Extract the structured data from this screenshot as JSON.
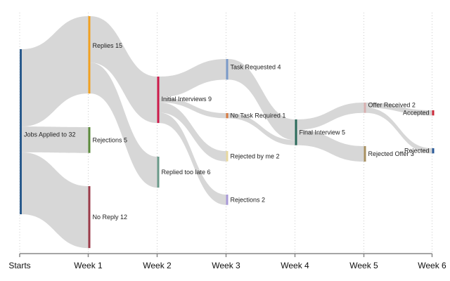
{
  "chart_data": {
    "type": "sankey",
    "title": "",
    "axis": {
      "ticks": [
        "Starts",
        "Week 1",
        "Week 2",
        "Week 3",
        "Week 4",
        "Week 5",
        "Week 6"
      ]
    },
    "unit_scale_max": 32,
    "nodes": [
      {
        "id": "start",
        "label": "Jobs Applied to 32",
        "value": 32,
        "week": 0,
        "color": "#2a5a8c"
      },
      {
        "id": "replies",
        "label": "Replies 15",
        "value": 15,
        "week": 1,
        "color": "#f0a020"
      },
      {
        "id": "rej1",
        "label": "Rejections 5",
        "value": 5,
        "week": 1,
        "color": "#5a8a3a"
      },
      {
        "id": "noreply",
        "label": "No Reply 12",
        "value": 12,
        "week": 1,
        "color": "#9a3a48"
      },
      {
        "id": "init",
        "label": "Initial Interviews 9",
        "value": 9,
        "week": 2,
        "color": "#cc1a4a"
      },
      {
        "id": "late",
        "label": "Replied too late 6",
        "value": 6,
        "week": 2,
        "color": "#6a9a8a"
      },
      {
        "id": "task",
        "label": "Task Requested 4",
        "value": 4,
        "week": 3,
        "color": "#7a9ac8"
      },
      {
        "id": "notask",
        "label": "No Task Required 1",
        "value": 1,
        "week": 3,
        "color": "#d87a40"
      },
      {
        "id": "rejme",
        "label": "Rejected by me 2",
        "value": 2,
        "week": 3,
        "color": "#e8d8a0"
      },
      {
        "id": "rej3",
        "label": "Rejections 2",
        "value": 2,
        "week": 3,
        "color": "#a89ad8"
      },
      {
        "id": "final",
        "label": "Final Interview 5",
        "value": 5,
        "week": 4,
        "color": "#2a6a5a"
      },
      {
        "id": "offer",
        "label": "Offer Received 2",
        "value": 2,
        "week": 5,
        "color": "#d8b0b0"
      },
      {
        "id": "rejoffer",
        "label": "Rejected Offer 3",
        "value": 3,
        "week": 5,
        "color": "#a89060"
      },
      {
        "id": "accepted",
        "label": "Accepted",
        "value": 1,
        "week": 6,
        "color": "#cc2a3a"
      },
      {
        "id": "rejected6",
        "label": "Rejected",
        "value": 1,
        "week": 6,
        "color": "#2a5a9a"
      }
    ],
    "links": [
      {
        "source": "start",
        "target": "replies",
        "value": 15
      },
      {
        "source": "start",
        "target": "rej1",
        "value": 5
      },
      {
        "source": "start",
        "target": "noreply",
        "value": 12
      },
      {
        "source": "replies",
        "target": "init",
        "value": 9
      },
      {
        "source": "replies",
        "target": "late",
        "value": 6
      },
      {
        "source": "init",
        "target": "task",
        "value": 4
      },
      {
        "source": "init",
        "target": "notask",
        "value": 1
      },
      {
        "source": "init",
        "target": "rejme",
        "value": 2
      },
      {
        "source": "init",
        "target": "rej3",
        "value": 2
      },
      {
        "source": "task",
        "target": "final",
        "value": 4
      },
      {
        "source": "notask",
        "target": "final",
        "value": 1
      },
      {
        "source": "final",
        "target": "offer",
        "value": 2
      },
      {
        "source": "final",
        "target": "rejoffer",
        "value": 3
      },
      {
        "source": "offer",
        "target": "accepted",
        "value": 1
      },
      {
        "source": "offer",
        "target": "rejected6",
        "value": 1
      }
    ]
  }
}
